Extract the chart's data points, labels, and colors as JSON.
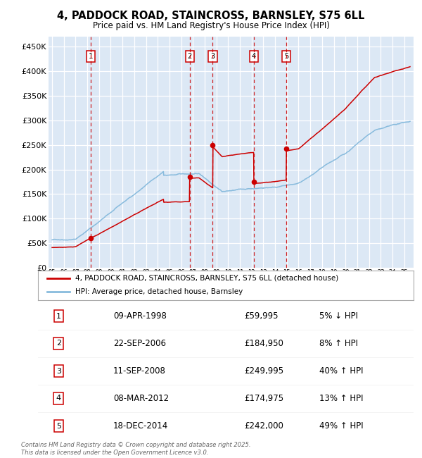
{
  "title": "4, PADDOCK ROAD, STAINCROSS, BARNSLEY, S75 6LL",
  "subtitle": "Price paid vs. HM Land Registry's House Price Index (HPI)",
  "bg_color": "#dce8f5",
  "sale_dates_decimal": [
    1998.27,
    2006.72,
    2008.69,
    2012.18,
    2014.96
  ],
  "sale_prices": [
    59995,
    184950,
    249995,
    174975,
    242000
  ],
  "sale_labels": [
    "1",
    "2",
    "3",
    "4",
    "5"
  ],
  "vline_color": "#cc0000",
  "sale_marker_color": "#cc0000",
  "hpi_line_color": "#88bbdd",
  "price_line_color": "#cc0000",
  "legend_entries": [
    "4, PADDOCK ROAD, STAINCROSS, BARNSLEY, S75 6LL (detached house)",
    "HPI: Average price, detached house, Barnsley"
  ],
  "table_rows": [
    [
      "1",
      "09-APR-1998",
      "£59,995",
      "5% ↓ HPI"
    ],
    [
      "2",
      "22-SEP-2006",
      "£184,950",
      "8% ↑ HPI"
    ],
    [
      "3",
      "11-SEP-2008",
      "£249,995",
      "40% ↑ HPI"
    ],
    [
      "4",
      "08-MAR-2012",
      "£174,975",
      "13% ↑ HPI"
    ],
    [
      "5",
      "18-DEC-2014",
      "£242,000",
      "49% ↑ HPI"
    ]
  ],
  "footer": "Contains HM Land Registry data © Crown copyright and database right 2025.\nThis data is licensed under the Open Government Licence v3.0.",
  "ylim": [
    0,
    470000
  ],
  "xlim_start": 1994.7,
  "xlim_end": 2025.8,
  "yticks": [
    0,
    50000,
    100000,
    150000,
    200000,
    250000,
    300000,
    350000,
    400000,
    450000
  ],
  "ytick_labels": [
    "£0",
    "£50K",
    "£100K",
    "£150K",
    "£200K",
    "£250K",
    "£300K",
    "£350K",
    "£400K",
    "£450K"
  ]
}
